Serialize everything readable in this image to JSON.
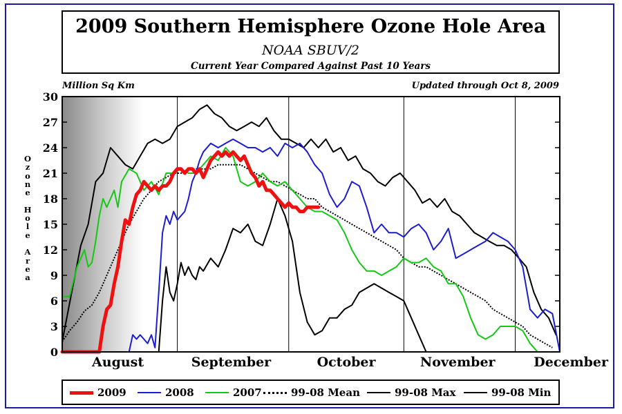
{
  "header": {
    "title": "2009 Southern Hemisphere Ozone Hole Area",
    "subtitle": "NOAA SBUV/2",
    "subtitle2": "Current Year Compared Against Past 10 Years",
    "unit_label": "Million Sq Km",
    "updated_label": "Updated through Oct 8, 2009"
  },
  "chart_data": {
    "type": "line",
    "title": "2009 Southern Hemisphere Ozone Hole Area",
    "ylabel": "Ozone Hole Area",
    "ylabel_vertical": "O\nz\no\nn\ne\n\nH\no\nl\ne\n\nA\nr\ne\na",
    "xlabel": "",
    "x_unit": "days since Aug 1",
    "xlim": [
      0,
      134
    ],
    "ylim": [
      0,
      30
    ],
    "y_ticks": [
      0,
      3,
      6,
      9,
      12,
      15,
      18,
      21,
      24,
      27,
      30
    ],
    "y_tick_labels": [
      "0",
      "3",
      "6",
      "9",
      "12",
      "15",
      "18",
      "21",
      "24",
      "27",
      "30"
    ],
    "month_boundaries": [
      31,
      61,
      92,
      122
    ],
    "month_labels": [
      {
        "label": "August",
        "x": 15
      },
      {
        "label": "September",
        "x": 45.5
      },
      {
        "label": "October",
        "x": 76.5
      },
      {
        "label": "November",
        "x": 106.5
      },
      {
        "label": "December",
        "x": 137
      }
    ],
    "grid": false,
    "legend": "bottom",
    "series": [
      {
        "name": "99-08 Max",
        "color": "#000000",
        "style": "solid",
        "width": 2,
        "x": [
          0,
          3,
          5,
          7,
          9,
          11,
          13,
          15,
          17,
          19,
          21,
          23,
          25,
          27,
          29,
          31,
          33,
          35,
          37,
          39,
          41,
          43,
          45,
          47,
          49,
          51,
          53,
          55,
          57,
          59,
          61,
          63,
          65,
          67,
          69,
          71,
          73,
          75,
          77,
          79,
          81,
          83,
          85,
          87,
          89,
          91,
          93,
          95,
          97,
          99,
          101,
          103,
          105,
          107,
          109,
          111,
          113,
          115,
          117,
          119,
          121,
          123,
          125,
          127,
          129,
          131,
          133
        ],
        "y": [
          1.2,
          8,
          12.5,
          15,
          20,
          21,
          24,
          23,
          22,
          21.5,
          23,
          24.5,
          25,
          24.5,
          25,
          26.5,
          27,
          27.5,
          28.5,
          29,
          28,
          27.5,
          26.5,
          26,
          26.5,
          27,
          26.5,
          27.5,
          26,
          25,
          25,
          24.5,
          24,
          25,
          24,
          25,
          23.5,
          24,
          22.5,
          23,
          21.5,
          21,
          20,
          19.5,
          20.5,
          21,
          20,
          19,
          17.5,
          18,
          17,
          18,
          16.5,
          16,
          15,
          14,
          13.5,
          13,
          12.5,
          12.5,
          12,
          11,
          10,
          7,
          5,
          4,
          2
        ]
      },
      {
        "name": "99-08 Min",
        "color": "#000000",
        "style": "solid",
        "width": 2,
        "x": [
          0,
          26,
          27,
          28,
          29,
          30,
          31,
          32,
          33,
          34,
          35,
          36,
          37,
          38,
          40,
          42,
          44,
          46,
          48,
          50,
          52,
          54,
          56,
          58,
          60,
          62,
          64,
          66,
          68,
          70,
          72,
          74,
          76,
          78,
          80,
          82,
          84,
          86,
          88,
          90,
          92,
          94,
          96,
          98
        ],
        "y": [
          0,
          0,
          6,
          10,
          7,
          6,
          8,
          10.5,
          9,
          10,
          9,
          8.5,
          10,
          9.5,
          11,
          10,
          12,
          14.5,
          14,
          15,
          13,
          12.5,
          15,
          18,
          16,
          13,
          7,
          3.5,
          2,
          2.5,
          4,
          4,
          5,
          5.5,
          7,
          7.5,
          8,
          7.5,
          7,
          6.5,
          6,
          4,
          2,
          0
        ]
      },
      {
        "name": "99-08 Mean",
        "color": "#000000",
        "style": "dotted",
        "width": 2,
        "x": [
          0,
          2,
          4,
          6,
          8,
          10,
          12,
          14,
          16,
          18,
          20,
          22,
          24,
          26,
          28,
          30,
          32,
          34,
          36,
          38,
          40,
          42,
          44,
          46,
          48,
          50,
          52,
          54,
          56,
          58,
          60,
          62,
          64,
          66,
          68,
          70,
          72,
          74,
          76,
          78,
          80,
          82,
          84,
          86,
          88,
          90,
          92,
          94,
          96,
          98,
          100,
          102,
          104,
          106,
          108,
          110,
          112,
          114,
          116,
          118,
          120,
          122,
          124,
          126,
          128,
          130,
          132
        ],
        "y": [
          1.2,
          2.5,
          3.5,
          4.8,
          5.5,
          7,
          9,
          11,
          13,
          15,
          16.5,
          18,
          19,
          20,
          20.5,
          21,
          21,
          21.5,
          21.5,
          21.5,
          21.5,
          22,
          22,
          22,
          22,
          21.5,
          21,
          20.5,
          20,
          20,
          19.5,
          19,
          18.5,
          18,
          18,
          17,
          16.5,
          16,
          15.5,
          15,
          14.5,
          14,
          13.5,
          13,
          12.5,
          12,
          11,
          10.5,
          10,
          10,
          9.5,
          9,
          8.5,
          8,
          7.5,
          7,
          6.5,
          6,
          5,
          4.5,
          4,
          3.5,
          3,
          2,
          1.5,
          1,
          0.5
        ]
      },
      {
        "name": "2008",
        "color": "#1c1cd0",
        "style": "solid",
        "width": 2,
        "x": [
          0,
          18,
          19,
          20,
          21,
          22,
          23,
          24,
          25,
          26,
          27,
          28,
          29,
          30,
          31,
          32,
          33,
          34,
          35,
          36,
          37,
          38,
          40,
          42,
          44,
          46,
          48,
          50,
          52,
          54,
          56,
          58,
          60,
          62,
          64,
          66,
          68,
          70,
          72,
          74,
          76,
          78,
          80,
          82,
          84,
          86,
          88,
          90,
          92,
          94,
          96,
          98,
          100,
          102,
          104,
          106,
          108,
          110,
          112,
          114,
          116,
          118,
          120,
          122,
          124,
          126,
          128,
          130,
          132,
          134
        ],
        "y": [
          0,
          0,
          2,
          1.5,
          2,
          1.5,
          1,
          2,
          0.5,
          7,
          14,
          16,
          15,
          16.5,
          15.5,
          16,
          16.5,
          18,
          20,
          21,
          22.5,
          23.5,
          24.5,
          24,
          24.5,
          25,
          24.5,
          24,
          24,
          23.5,
          24,
          23,
          24.5,
          24,
          24.5,
          23.5,
          22,
          21,
          18.5,
          17,
          18,
          20,
          19.5,
          17,
          14,
          15,
          14,
          14,
          13.5,
          14.5,
          15,
          14,
          12,
          13,
          14.5,
          11,
          11.5,
          12,
          12.5,
          13,
          14,
          13.5,
          13,
          12,
          10,
          5,
          4,
          5,
          4.5,
          0
        ]
      },
      {
        "name": "2007",
        "color": "#14c814",
        "style": "solid",
        "width": 2,
        "x": [
          0,
          2,
          4,
          6,
          7,
          8,
          9,
          10,
          11,
          12,
          13,
          14,
          15,
          16,
          18,
          20,
          22,
          24,
          26,
          28,
          30,
          32,
          34,
          36,
          38,
          40,
          42,
          44,
          46,
          48,
          50,
          52,
          54,
          56,
          58,
          60,
          62,
          64,
          66,
          68,
          70,
          72,
          74,
          76,
          78,
          80,
          82,
          84,
          86,
          88,
          90,
          92,
          94,
          96,
          98,
          100,
          102,
          104,
          106,
          108,
          110,
          112,
          114,
          116,
          118,
          120,
          122,
          124,
          126,
          128,
          130,
          132,
          134
        ],
        "y": [
          6.5,
          6.5,
          10,
          12,
          10,
          10.5,
          13,
          16,
          18,
          17,
          18,
          19,
          17,
          20,
          21.5,
          21,
          19,
          20,
          18.5,
          21,
          21,
          21.5,
          21,
          21,
          22,
          23,
          22.5,
          24,
          23,
          20,
          19.5,
          20,
          21,
          20,
          19.5,
          20,
          19,
          18,
          17,
          16.5,
          16.5,
          16,
          15.5,
          14,
          12,
          10.5,
          9.5,
          9.5,
          9,
          9.5,
          10,
          11,
          10.5,
          10.5,
          11,
          10,
          9.5,
          8,
          8,
          6.5,
          4,
          2,
          1.5,
          2,
          3,
          3,
          3,
          2.5,
          1,
          0,
          0,
          0,
          0
        ]
      },
      {
        "name": "2009",
        "color": "#ee1111",
        "style": "solid",
        "width": 5,
        "x": [
          0,
          10,
          11,
          12,
          13,
          14,
          15,
          16,
          17,
          18,
          19,
          20,
          21,
          22,
          23,
          24,
          25,
          26,
          27,
          28,
          29,
          30,
          31,
          32,
          33,
          34,
          35,
          36,
          37,
          38,
          39,
          40,
          41,
          42,
          43,
          44,
          45,
          46,
          47,
          48,
          49,
          50,
          51,
          52,
          53,
          54,
          55,
          56,
          57,
          58,
          59,
          60,
          61,
          62,
          63,
          64,
          65,
          66,
          67,
          68,
          69
        ],
        "y": [
          0,
          0,
          3,
          5,
          5.5,
          8,
          10,
          13,
          15.5,
          15,
          17,
          18.5,
          19,
          20,
          19.5,
          19,
          19.5,
          19,
          19.5,
          19.5,
          20,
          21,
          21.5,
          21.5,
          21,
          21.5,
          21.5,
          21,
          21.5,
          20.5,
          21.5,
          22.5,
          23,
          23.5,
          23,
          23.5,
          23,
          23.5,
          23,
          22.5,
          23,
          22,
          21,
          20.5,
          19.5,
          20,
          19,
          19,
          18.5,
          18,
          17.5,
          17,
          17.5,
          17,
          17,
          16.5,
          16.5,
          17,
          17,
          17,
          17
        ]
      }
    ]
  },
  "legend": {
    "items": [
      {
        "label": "2009",
        "color": "#ee1111",
        "style": "solid",
        "width": 5
      },
      {
        "label": "2008",
        "color": "#1c1cd0",
        "style": "solid",
        "width": 2
      },
      {
        "label": "2007",
        "color": "#14c814",
        "style": "solid",
        "width": 2
      },
      {
        "label": "99-08 Mean",
        "color": "#000000",
        "style": "dotted",
        "width": 3
      },
      {
        "label": "99-08 Max",
        "color": "#000000",
        "style": "solid",
        "width": 2
      },
      {
        "label": "99-08 Min",
        "color": "#000000",
        "style": "solid",
        "width": 2
      }
    ]
  }
}
